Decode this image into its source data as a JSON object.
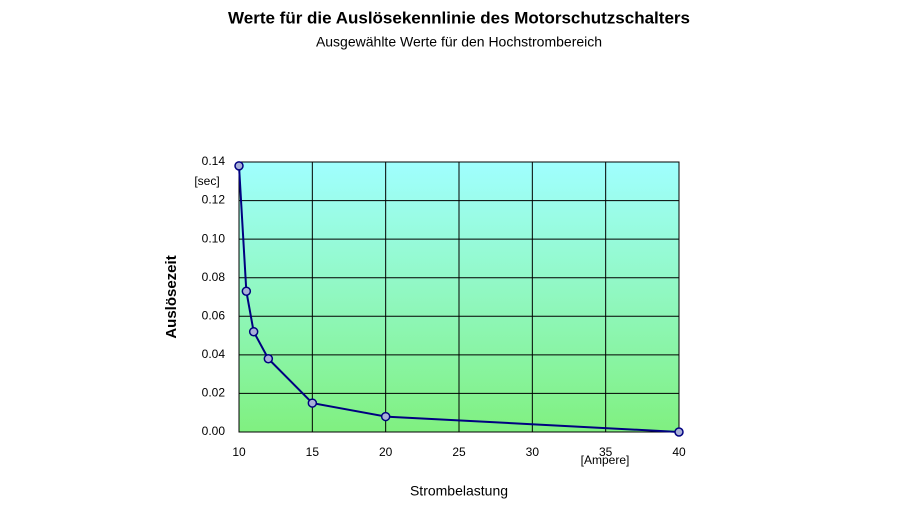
{
  "chart_data": {
    "type": "line",
    "title": "Werte für die Auslösekennlinie des Motorschutzschalters",
    "subtitle": "Ausgewählte Werte für den Hochstrombereich",
    "x_label": "Strombelastung",
    "y_label": "Auslösezeit",
    "x_unit": "[Ampere]",
    "y_unit": "[sec]",
    "x": [
      10,
      10.5,
      11,
      12,
      15,
      20,
      40
    ],
    "values": [
      0.138,
      0.073,
      0.052,
      0.038,
      0.015,
      0.008,
      0
    ],
    "color": "#000080",
    "xlim": [
      10,
      40
    ],
    "ylim": [
      0,
      0.14
    ],
    "xticks": [
      10,
      15,
      20,
      25,
      30,
      35,
      40
    ],
    "yticks": [
      {
        "value": 0,
        "label": "0.00"
      },
      {
        "value": 0.02,
        "label": "0.02"
      },
      {
        "value": 0.04,
        "label": "0.04"
      },
      {
        "value": 0.06,
        "label": "0.06"
      },
      {
        "value": 0.08,
        "label": "0.08"
      },
      {
        "value": 0.1,
        "label": "0.10"
      },
      {
        "value": 0.12,
        "label": "0.12"
      },
      {
        "value": 0.14,
        "label": "0.14"
      }
    ],
    "grid": true
  }
}
